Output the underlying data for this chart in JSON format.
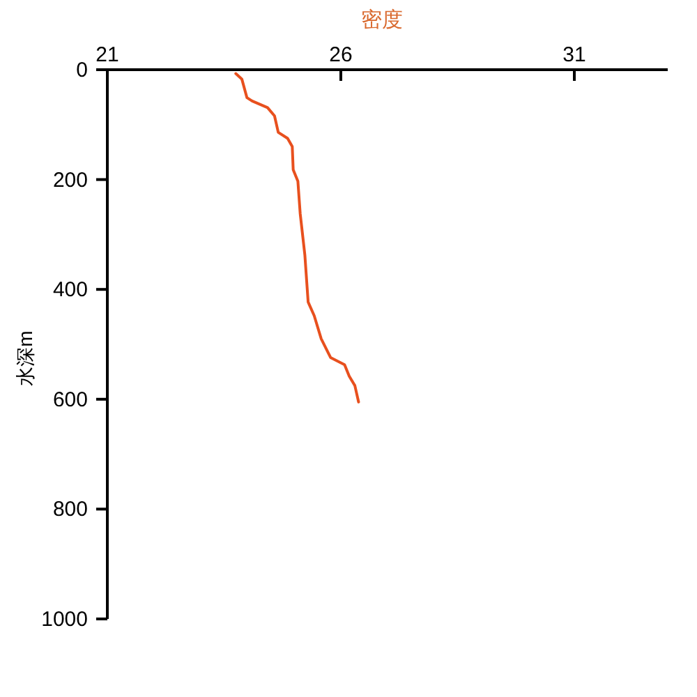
{
  "chart_data": {
    "type": "line",
    "xlabel": "密度",
    "ylabel": "水深m",
    "xlim": [
      21,
      33
    ],
    "xticks": [
      21,
      26,
      31
    ],
    "ylim": [
      1000,
      0
    ],
    "yticks": [
      0,
      200,
      400,
      600,
      800,
      1000
    ],
    "series": [
      {
        "color": "#e8501e",
        "x": [
          23.75,
          23.88,
          23.99,
          24.1,
          24.43,
          24.58,
          24.66,
          24.86,
          24.96,
          24.98,
          25.08,
          25.13,
          25.23,
          25.3,
          25.43,
          25.58,
          25.78,
          26.08,
          26.18,
          26.3,
          26.38
        ],
        "values": [
          7,
          17,
          51,
          57,
          69,
          84,
          114,
          125,
          140,
          182,
          203,
          262,
          338,
          423,
          448,
          490,
          524,
          537,
          558,
          575,
          605
        ]
      }
    ]
  }
}
